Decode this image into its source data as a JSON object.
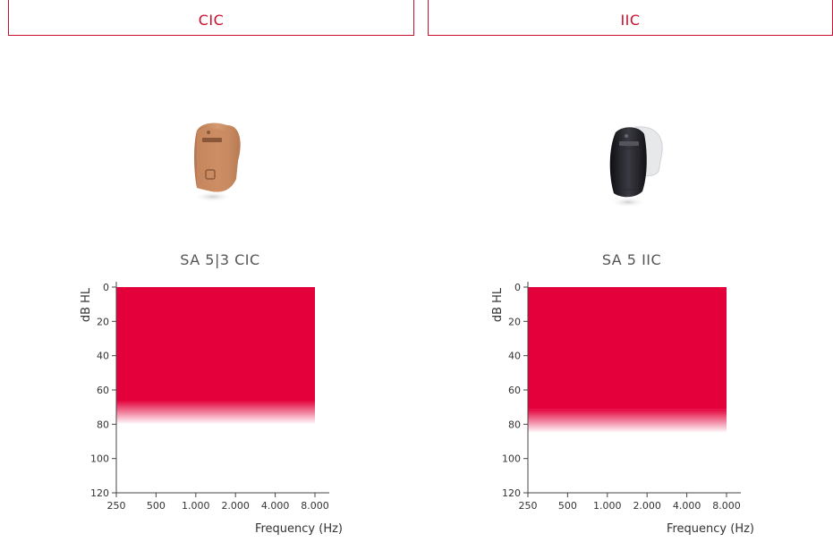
{
  "tabs": [
    {
      "label": "CIC"
    },
    {
      "label": "IIC"
    }
  ],
  "products": [
    {
      "name": "SA 5|3 CIC",
      "device_color": "#c78a61"
    },
    {
      "name": "SA 5 IIC",
      "device_color": "#1e1e22"
    }
  ],
  "chart_data": [
    {
      "type": "area",
      "title": "SA 5|3 CIC",
      "ylabel": "dB HL",
      "xlabel": "Frequency (Hz)",
      "x_ticks": [
        "250",
        "500",
        "1.000",
        "2.000",
        "4.000",
        "8.000"
      ],
      "y_ticks": [
        "0",
        "20",
        "40",
        "60",
        "80",
        "100",
        "120"
      ],
      "ylim": [
        0,
        120
      ],
      "y_inverted": true,
      "fitting_range": {
        "x_from": "250",
        "x_to": "8.000",
        "db_from": 0,
        "db_solid_to": 66,
        "db_fade_to": 80
      },
      "color": "#e3003b"
    },
    {
      "type": "area",
      "title": "SA 5 IIC",
      "ylabel": "dB HL",
      "xlabel": "Frequency (Hz)",
      "x_ticks": [
        "250",
        "500",
        "1.000",
        "2.000",
        "4.000",
        "8.000"
      ],
      "y_ticks": [
        "0",
        "20",
        "40",
        "60",
        "80",
        "100",
        "120"
      ],
      "ylim": [
        0,
        120
      ],
      "y_inverted": true,
      "fitting_range": {
        "x_from": "250",
        "x_to": "8.000",
        "db_from": 0,
        "db_solid_to": 71,
        "db_fade_to": 85
      },
      "color": "#e3003b"
    }
  ]
}
